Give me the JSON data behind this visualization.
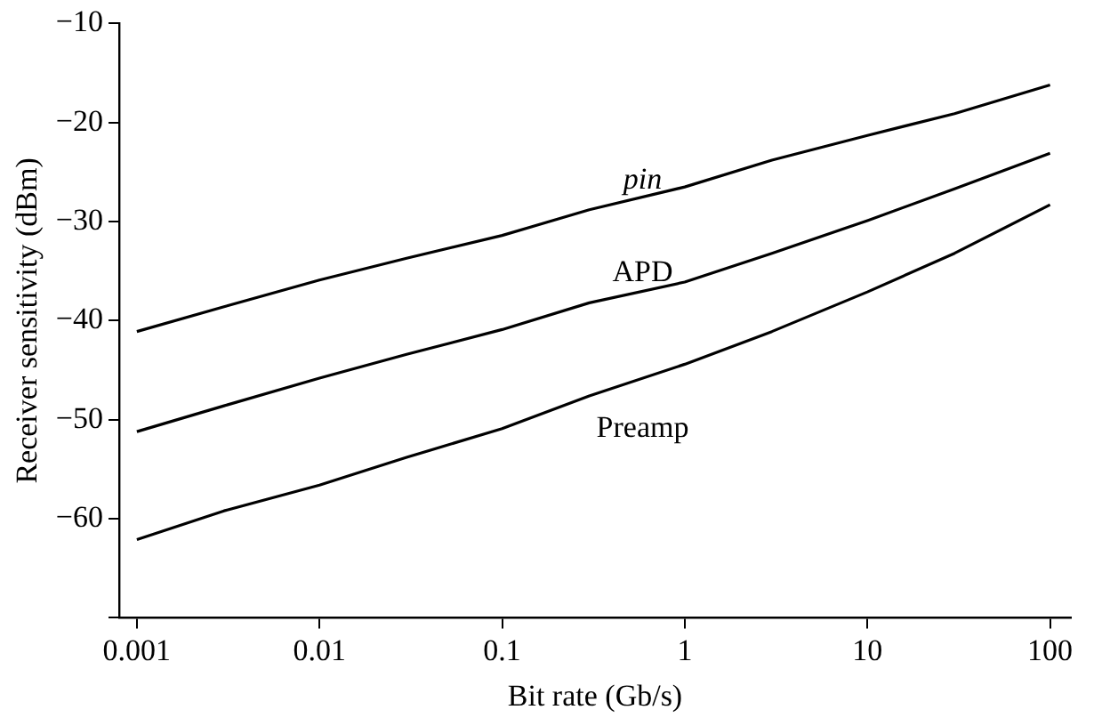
{
  "chart_data": {
    "type": "line",
    "xlabel": "Bit rate (Gb/s)",
    "ylabel": "Receiver sensitivity (dBm)",
    "log": "x",
    "x": [
      0.001,
      0.003,
      0.01,
      0.03,
      0.1,
      0.3,
      1,
      3,
      10,
      30,
      100
    ],
    "series": [
      {
        "name": "pin",
        "color": "#000000",
        "values": [
          -41.1,
          -38.6,
          -35.9,
          -33.7,
          -31.4,
          -28.8,
          -26.5,
          -23.8,
          -21.3,
          -19.1,
          -16.2
        ]
      },
      {
        "name": "APD",
        "color": "#000000",
        "values": [
          -51.2,
          -48.6,
          -45.8,
          -43.4,
          -40.9,
          -38.2,
          -36.1,
          -33.2,
          -29.9,
          -26.7,
          -23.1
        ]
      },
      {
        "name": "Preamp",
        "color": "#000000",
        "values": [
          -62.1,
          -59.2,
          -56.6,
          -53.8,
          -50.9,
          -47.6,
          -44.4,
          -41.1,
          -37.1,
          -33.2,
          -28.3
        ]
      }
    ],
    "xlim": [
      0.0008,
      130
    ],
    "xticks": [
      0.001,
      0.01,
      0.1,
      1,
      10,
      100
    ],
    "ylim": [
      -70,
      -10
    ],
    "yticks": [
      {
        "value": -70,
        "label": null
      },
      -60,
      -50,
      -40,
      -30,
      -20,
      -10
    ],
    "grid": false,
    "legend": false,
    "marker": "none",
    "line_style": "solid"
  }
}
